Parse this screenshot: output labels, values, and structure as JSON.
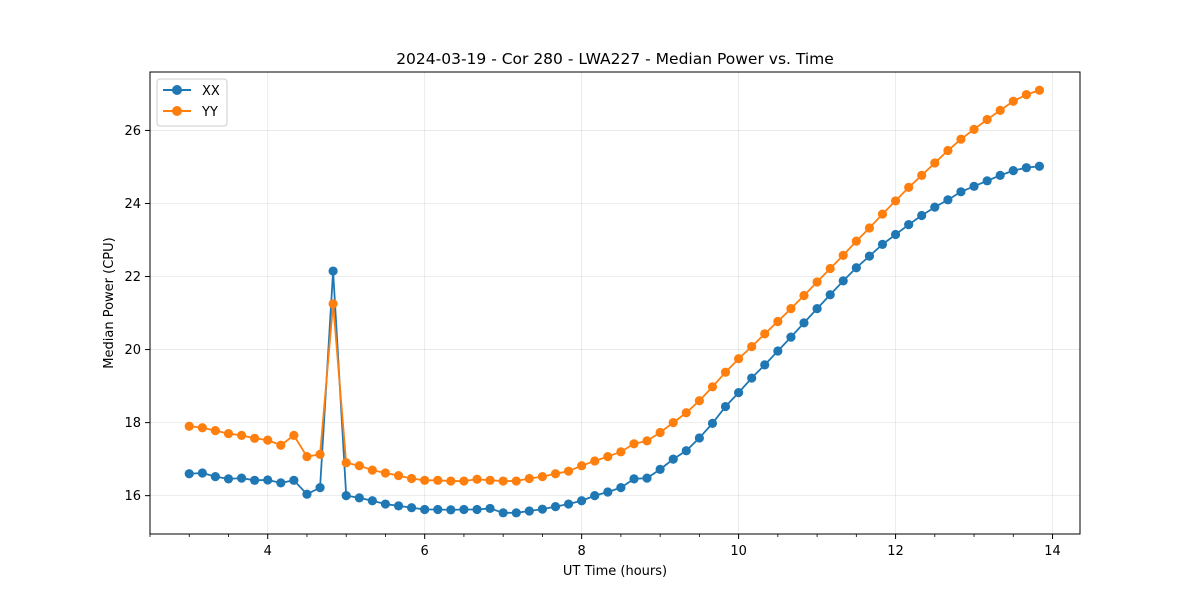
{
  "chart_data": {
    "type": "line",
    "title": "2024-03-19 - Cor 280 - LWA227 - Median Power vs. Time",
    "xlabel": "UT Time (hours)",
    "ylabel": "Median Power (CPU)",
    "xlim": [
      2.5,
      14.35
    ],
    "ylim": [
      14.95,
      27.6
    ],
    "xticks": [
      4,
      6,
      8,
      10,
      12,
      14
    ],
    "xminor_step": 0.5,
    "yticks": [
      16,
      18,
      20,
      22,
      24,
      26
    ],
    "grid": true,
    "legend_position": "top-left",
    "x": [
      3.0,
      3.167,
      3.333,
      3.5,
      3.667,
      3.833,
      4.0,
      4.167,
      4.333,
      4.5,
      4.667,
      4.833,
      5.0,
      5.167,
      5.333,
      5.5,
      5.667,
      5.833,
      6.0,
      6.167,
      6.333,
      6.5,
      6.667,
      6.833,
      7.0,
      7.167,
      7.333,
      7.5,
      7.667,
      7.833,
      8.0,
      8.167,
      8.333,
      8.5,
      8.667,
      8.833,
      9.0,
      9.167,
      9.333,
      9.5,
      9.667,
      9.833,
      10.0,
      10.167,
      10.333,
      10.5,
      10.667,
      10.833,
      11.0,
      11.167,
      11.333,
      11.5,
      11.667,
      11.833,
      12.0,
      12.167,
      12.333,
      12.5,
      12.667,
      12.833,
      13.0,
      13.167,
      13.333,
      13.5,
      13.667,
      13.833
    ],
    "series": [
      {
        "name": "XX",
        "color": "#1f77b4",
        "values": [
          16.6,
          16.62,
          16.52,
          16.46,
          16.48,
          16.42,
          16.43,
          16.35,
          16.42,
          16.04,
          16.22,
          22.15,
          16.0,
          15.94,
          15.86,
          15.77,
          15.72,
          15.67,
          15.62,
          15.62,
          15.61,
          15.62,
          15.62,
          15.65,
          15.53,
          15.53,
          15.58,
          15.63,
          15.7,
          15.77,
          15.86,
          16.0,
          16.1,
          16.22,
          16.46,
          16.48,
          16.72,
          17.0,
          17.23,
          17.58,
          17.98,
          18.44,
          18.82,
          19.22,
          19.58,
          19.96,
          20.34,
          20.73,
          21.12,
          21.5,
          21.88,
          22.24,
          22.56,
          22.88,
          23.15,
          23.42,
          23.67,
          23.9,
          24.1,
          24.32,
          24.47,
          24.62,
          24.77,
          24.9,
          24.98,
          25.02
        ]
      },
      {
        "name": "YY",
        "color": "#ff7f0e",
        "values": [
          17.9,
          17.86,
          17.78,
          17.7,
          17.65,
          17.57,
          17.52,
          17.38,
          17.65,
          17.07,
          17.13,
          21.25,
          16.9,
          16.82,
          16.7,
          16.62,
          16.55,
          16.47,
          16.42,
          16.42,
          16.4,
          16.4,
          16.45,
          16.42,
          16.4,
          16.4,
          16.47,
          16.52,
          16.6,
          16.67,
          16.82,
          16.95,
          17.07,
          17.2,
          17.42,
          17.5,
          17.73,
          18.0,
          18.27,
          18.6,
          18.98,
          19.38,
          19.75,
          20.08,
          20.43,
          20.77,
          21.12,
          21.48,
          21.85,
          22.22,
          22.58,
          22.97,
          23.33,
          23.71,
          24.07,
          24.44,
          24.77,
          25.11,
          25.45,
          25.76,
          26.03,
          26.3,
          26.55,
          26.8,
          26.98,
          27.1
        ]
      }
    ]
  }
}
